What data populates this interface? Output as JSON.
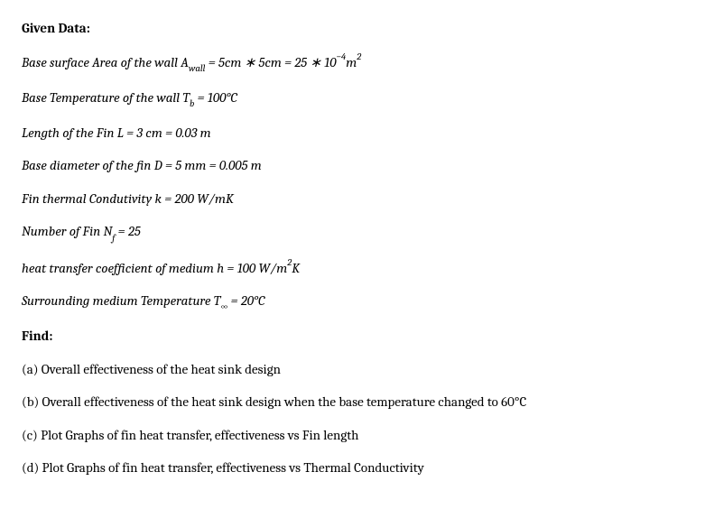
{
  "header": {
    "given_data": "Given Data:",
    "find": "Find:"
  },
  "lines": {
    "l1_pre": "Base surface Area of the wall A",
    "l1_sub": "wall",
    "l1_post": "  =  5cm ∗ 5cm  =  25 ∗ 10",
    "l1_sup": "−4",
    "l1_unit_pre": "m",
    "l1_unit_sup": "2",
    "l2_pre": "Base Temperature of the wall T",
    "l2_sub": "b",
    "l2_post": "  =  100°C",
    "l3": "Length of the Fin L  =  3 cm  =  0.03 m",
    "l4": "Base diameter of the fin D  =  5 mm  =  0.005 m",
    "l5": "Fin thermal Condutivity k  =  200 W/mK",
    "l6_pre": "Number of Fin N",
    "l6_sub": "f",
    "l6_post": "  = 25",
    "l7_pre": "heat transfer coefficient of medium h  =  100 W/m",
    "l7_sup": "2",
    "l7_post": "K",
    "l8_pre": "Surrounding medium Temperature T",
    "l8_sub": "∞",
    "l8_post": "  =  20°C"
  },
  "finds": {
    "a": "(a) Overall effectiveness of the heat sink design",
    "b": "(b) Overall effectiveness of the heat sink design when the base temperature changed to 60°C",
    "c": "(c) Plot Graphs of fin heat transfer, effectiveness vs Fin length",
    "d": "(d) Plot Graphs of fin heat transfer, effectiveness vs Thermal Conductivity"
  }
}
